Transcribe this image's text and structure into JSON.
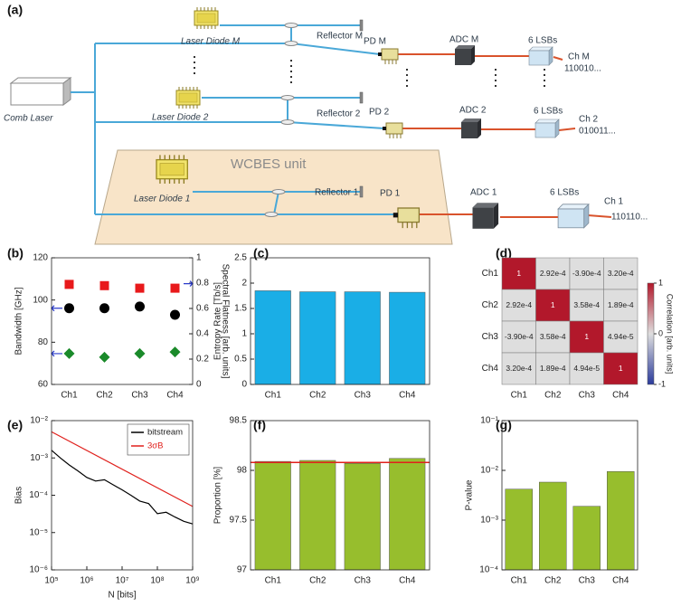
{
  "diagram": {
    "label": "(a)",
    "comb_laser": "Comb Laser",
    "unit": "WCBES unit",
    "channels": [
      {
        "laser": "Laser Diode M",
        "reflector": "Reflector M",
        "pd": "PD M",
        "adc": "ADC M",
        "lsb": "6 LSBs",
        "ch": "Ch M",
        "bits": "110010..."
      },
      {
        "laser": "Laser Diode 2",
        "reflector": "Reflector 2",
        "pd": "PD 2",
        "adc": "ADC 2",
        "lsb": "6 LSBs",
        "ch": "Ch 2",
        "bits": "010011..."
      },
      {
        "laser": "Laser Diode 1",
        "reflector": "Reflector 1",
        "pd": "PD 1",
        "adc": "ADC 1",
        "lsb": "6 LSBs",
        "ch": "Ch 1",
        "bits": "110110..."
      }
    ]
  },
  "chart_data": [
    {
      "type": "dot",
      "label": "(b)",
      "categories": [
        "Ch1",
        "Ch2",
        "Ch3",
        "Ch4"
      ],
      "ylabel": "Bandwidth [GHz]",
      "y2label": "Spectral Flatness [arb. units]",
      "ylim": [
        60,
        120
      ],
      "yticks": [
        60,
        80,
        100,
        120
      ],
      "y2lim": [
        0,
        1
      ],
      "y2ticks": [
        0,
        0.2,
        0.4,
        0.6,
        0.8,
        1
      ],
      "series": [
        {
          "color": "#e8191b",
          "marker": "square",
          "axis": "y2",
          "values": [
            0.79,
            0.78,
            0.76,
            0.76
          ]
        },
        {
          "color": "#000000",
          "marker": "circle",
          "values": [
            96.1,
            96.1,
            96.9,
            93.0
          ]
        },
        {
          "color": "#1a8a2a",
          "marker": "diamond",
          "values": [
            74.6,
            72.9,
            74.6,
            75.4
          ]
        }
      ]
    },
    {
      "type": "bar",
      "label": "(c)",
      "categories": [
        "Ch1",
        "Ch2",
        "Ch3",
        "Ch4"
      ],
      "values": [
        1.85,
        1.83,
        1.83,
        1.82
      ],
      "color": "#1aaee6",
      "ylabel": "Entropy Rate [Tb/s]",
      "ylim": [
        0,
        2.5
      ],
      "yticks": [
        0,
        0.5,
        1,
        1.5,
        2,
        2.5
      ]
    },
    {
      "type": "heatmap",
      "label": "(d)",
      "rows": [
        "Ch1",
        "Ch2",
        "Ch3",
        "Ch4"
      ],
      "columns": [
        "Ch1",
        "Ch2",
        "Ch3",
        "Ch4"
      ],
      "values": [
        [
          1,
          0.000292,
          -0.00039,
          0.00032
        ],
        [
          0.000292,
          1,
          0.000358,
          0.000189
        ],
        [
          -0.00039,
          0.000358,
          1,
          4.94e-05
        ],
        [
          0.00032,
          0.000189,
          4.94e-05,
          1
        ]
      ],
      "value_labels": [
        [
          "1",
          "2.92e-4",
          "-3.90e-4",
          "3.20e-4"
        ],
        [
          "2.92e-4",
          "1",
          "3.58e-4",
          "1.89e-4"
        ],
        [
          "-3.90e-4",
          "3.58e-4",
          "1",
          "4.94e-5"
        ],
        [
          "3.20e-4",
          "1.89e-4",
          "4.94e-5",
          "1"
        ]
      ],
      "colorbar_label": "Correlation [arb. units]",
      "clim": [
        -1,
        1
      ],
      "cticks": [
        -1,
        0,
        1
      ],
      "colors": [
        "#2b3b9c",
        "#dedede",
        "#b2182b"
      ]
    },
    {
      "type": "line",
      "label": "(e)",
      "xlabel": "N [bits]",
      "ylabel": "Bias",
      "xlog": true,
      "ylog": true,
      "xlim": [
        100000,
        1000000000
      ],
      "ylim": [
        1e-06,
        0.01
      ],
      "xticks": [
        {
          "value": 100000,
          "label": "10⁵"
        },
        {
          "value": 1000000,
          "label": "10⁶"
        },
        {
          "value": 10000000,
          "label": "10⁷"
        },
        {
          "value": 100000000,
          "label": "10⁸"
        },
        {
          "value": 1000000000,
          "label": "10⁹"
        }
      ],
      "yticks": [
        {
          "value": 1e-06,
          "label": "10⁻⁶"
        },
        {
          "value": 1e-05,
          "label": "10⁻⁵"
        },
        {
          "value": 0.0001,
          "label": "10⁻⁴"
        },
        {
          "value": 0.001,
          "label": "10⁻³"
        },
        {
          "value": 0.01,
          "label": "10⁻²"
        }
      ],
      "legend": "upper right",
      "series": [
        {
          "name": "bitstream",
          "color": "#000000",
          "x": [
            100000,
            177828,
            316228,
            562341,
            1000000,
            1778279,
            3162278,
            5623413,
            10000000,
            17782794,
            31622777,
            56234133,
            100000000,
            177827941,
            316227766,
            562341325,
            1000000000
          ],
          "values": [
            0.0016,
            0.001,
            0.00065,
            0.00045,
            0.0003,
            0.00024,
            0.00026,
            0.00019,
            0.00014,
            0.0001,
            7e-05,
            6e-05,
            3.2e-05,
            3.5e-05,
            2.6e-05,
            2e-05,
            1.7e-05
          ]
        },
        {
          "name": "3σB",
          "color": "#e0201c",
          "x": [
            100000,
            1000000000
          ],
          "values": [
            0.005,
            5e-05
          ]
        }
      ]
    },
    {
      "type": "bar",
      "label": "(f)",
      "categories": [
        "Ch1",
        "Ch2",
        "Ch3",
        "Ch4"
      ],
      "values": [
        98.09,
        98.1,
        98.07,
        98.12
      ],
      "color": "#97be2d",
      "ylabel": "Proportion [%]",
      "ylim": [
        97,
        98.5
      ],
      "yticks": [
        97,
        97.5,
        98,
        98.5
      ],
      "hline": 98.08,
      "hline_color": "#e0201c"
    },
    {
      "type": "bar",
      "label": "(g)",
      "categories": [
        "Ch1",
        "Ch2",
        "Ch3",
        "Ch4"
      ],
      "values": [
        0.0042,
        0.0058,
        0.0019,
        0.0095
      ],
      "color": "#97be2d",
      "ylabel": "P-value",
      "ylog": true,
      "ylim": [
        0.0001,
        0.1
      ],
      "yticks": [
        {
          "value": 0.0001,
          "label": "10⁻⁴"
        },
        {
          "value": 0.001,
          "label": "10⁻³"
        },
        {
          "value": 0.01,
          "label": "10⁻²"
        },
        {
          "value": 0.1,
          "label": "10⁻¹"
        }
      ]
    }
  ]
}
